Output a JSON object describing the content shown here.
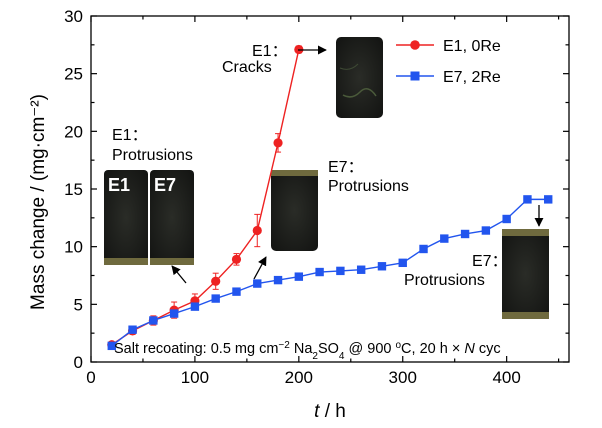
{
  "colors": {
    "e1": "#ee2222",
    "e7": "#2255ee",
    "axis": "#000000",
    "specimen": "#1c1d1b",
    "specimen_edge": "#7a7a52"
  },
  "chart_data": {
    "type": "line",
    "xlabel_italic": "t",
    "xlabel_unit": " / h",
    "ylabel": "Mass change / (mg·cm⁻²)",
    "xlim": [
      0,
      460
    ],
    "ylim": [
      0,
      30
    ],
    "xticks": [
      0,
      100,
      200,
      300,
      400
    ],
    "yticks": [
      0,
      5,
      10,
      15,
      20,
      25,
      30
    ],
    "grid": false,
    "legend_position": "top-right",
    "series": [
      {
        "name": "E1, 0Re",
        "color": "#ee2222",
        "marker": "circle",
        "x": [
          20,
          40,
          60,
          80,
          100,
          120,
          140,
          160,
          180,
          200
        ],
        "y": [
          1.5,
          2.7,
          3.6,
          4.5,
          5.3,
          7.0,
          8.9,
          11.4,
          19.0,
          27.1
        ],
        "err": [
          0.2,
          0.3,
          0.4,
          0.7,
          0.6,
          0.7,
          0.5,
          1.4,
          0.8,
          0.3
        ]
      },
      {
        "name": "E7, 2Re",
        "color": "#2255ee",
        "marker": "square",
        "x": [
          20,
          40,
          60,
          80,
          100,
          120,
          140,
          160,
          180,
          200,
          220,
          240,
          260,
          280,
          300,
          320,
          340,
          360,
          380,
          400,
          420,
          440
        ],
        "y": [
          1.4,
          2.8,
          3.6,
          4.2,
          4.8,
          5.5,
          6.1,
          6.8,
          7.1,
          7.4,
          7.8,
          7.9,
          8.0,
          8.3,
          8.6,
          9.8,
          10.7,
          11.1,
          11.4,
          12.4,
          14.1,
          14.1
        ]
      }
    ],
    "annotations": {
      "e1_cracks_line1": "E1：",
      "e1_cracks_line2": "Cracks",
      "e1_protrusions_line1": "E1：",
      "e1_protrusions_line2": "Protrusions",
      "e7_protrusions_mid_line1": "E7：",
      "e7_protrusions_mid_line2": "Protrusions",
      "e7_protrusions_right_line1": "E7：",
      "e7_protrusions_right_line2": "Protrusions",
      "specimen_e1": "E1",
      "specimen_e7": "E7"
    },
    "footnote": {
      "part1": "Salt recoating: 0.5 mg cm",
      "sup1": "−2",
      "part2": " Na",
      "sub1": "2",
      "part3": "SO",
      "sub2": "4",
      "part4": " @ 900 ",
      "sup2": "o",
      "part5": "C, 20 h × ",
      "italic": "N",
      "part6": " cyc"
    }
  }
}
